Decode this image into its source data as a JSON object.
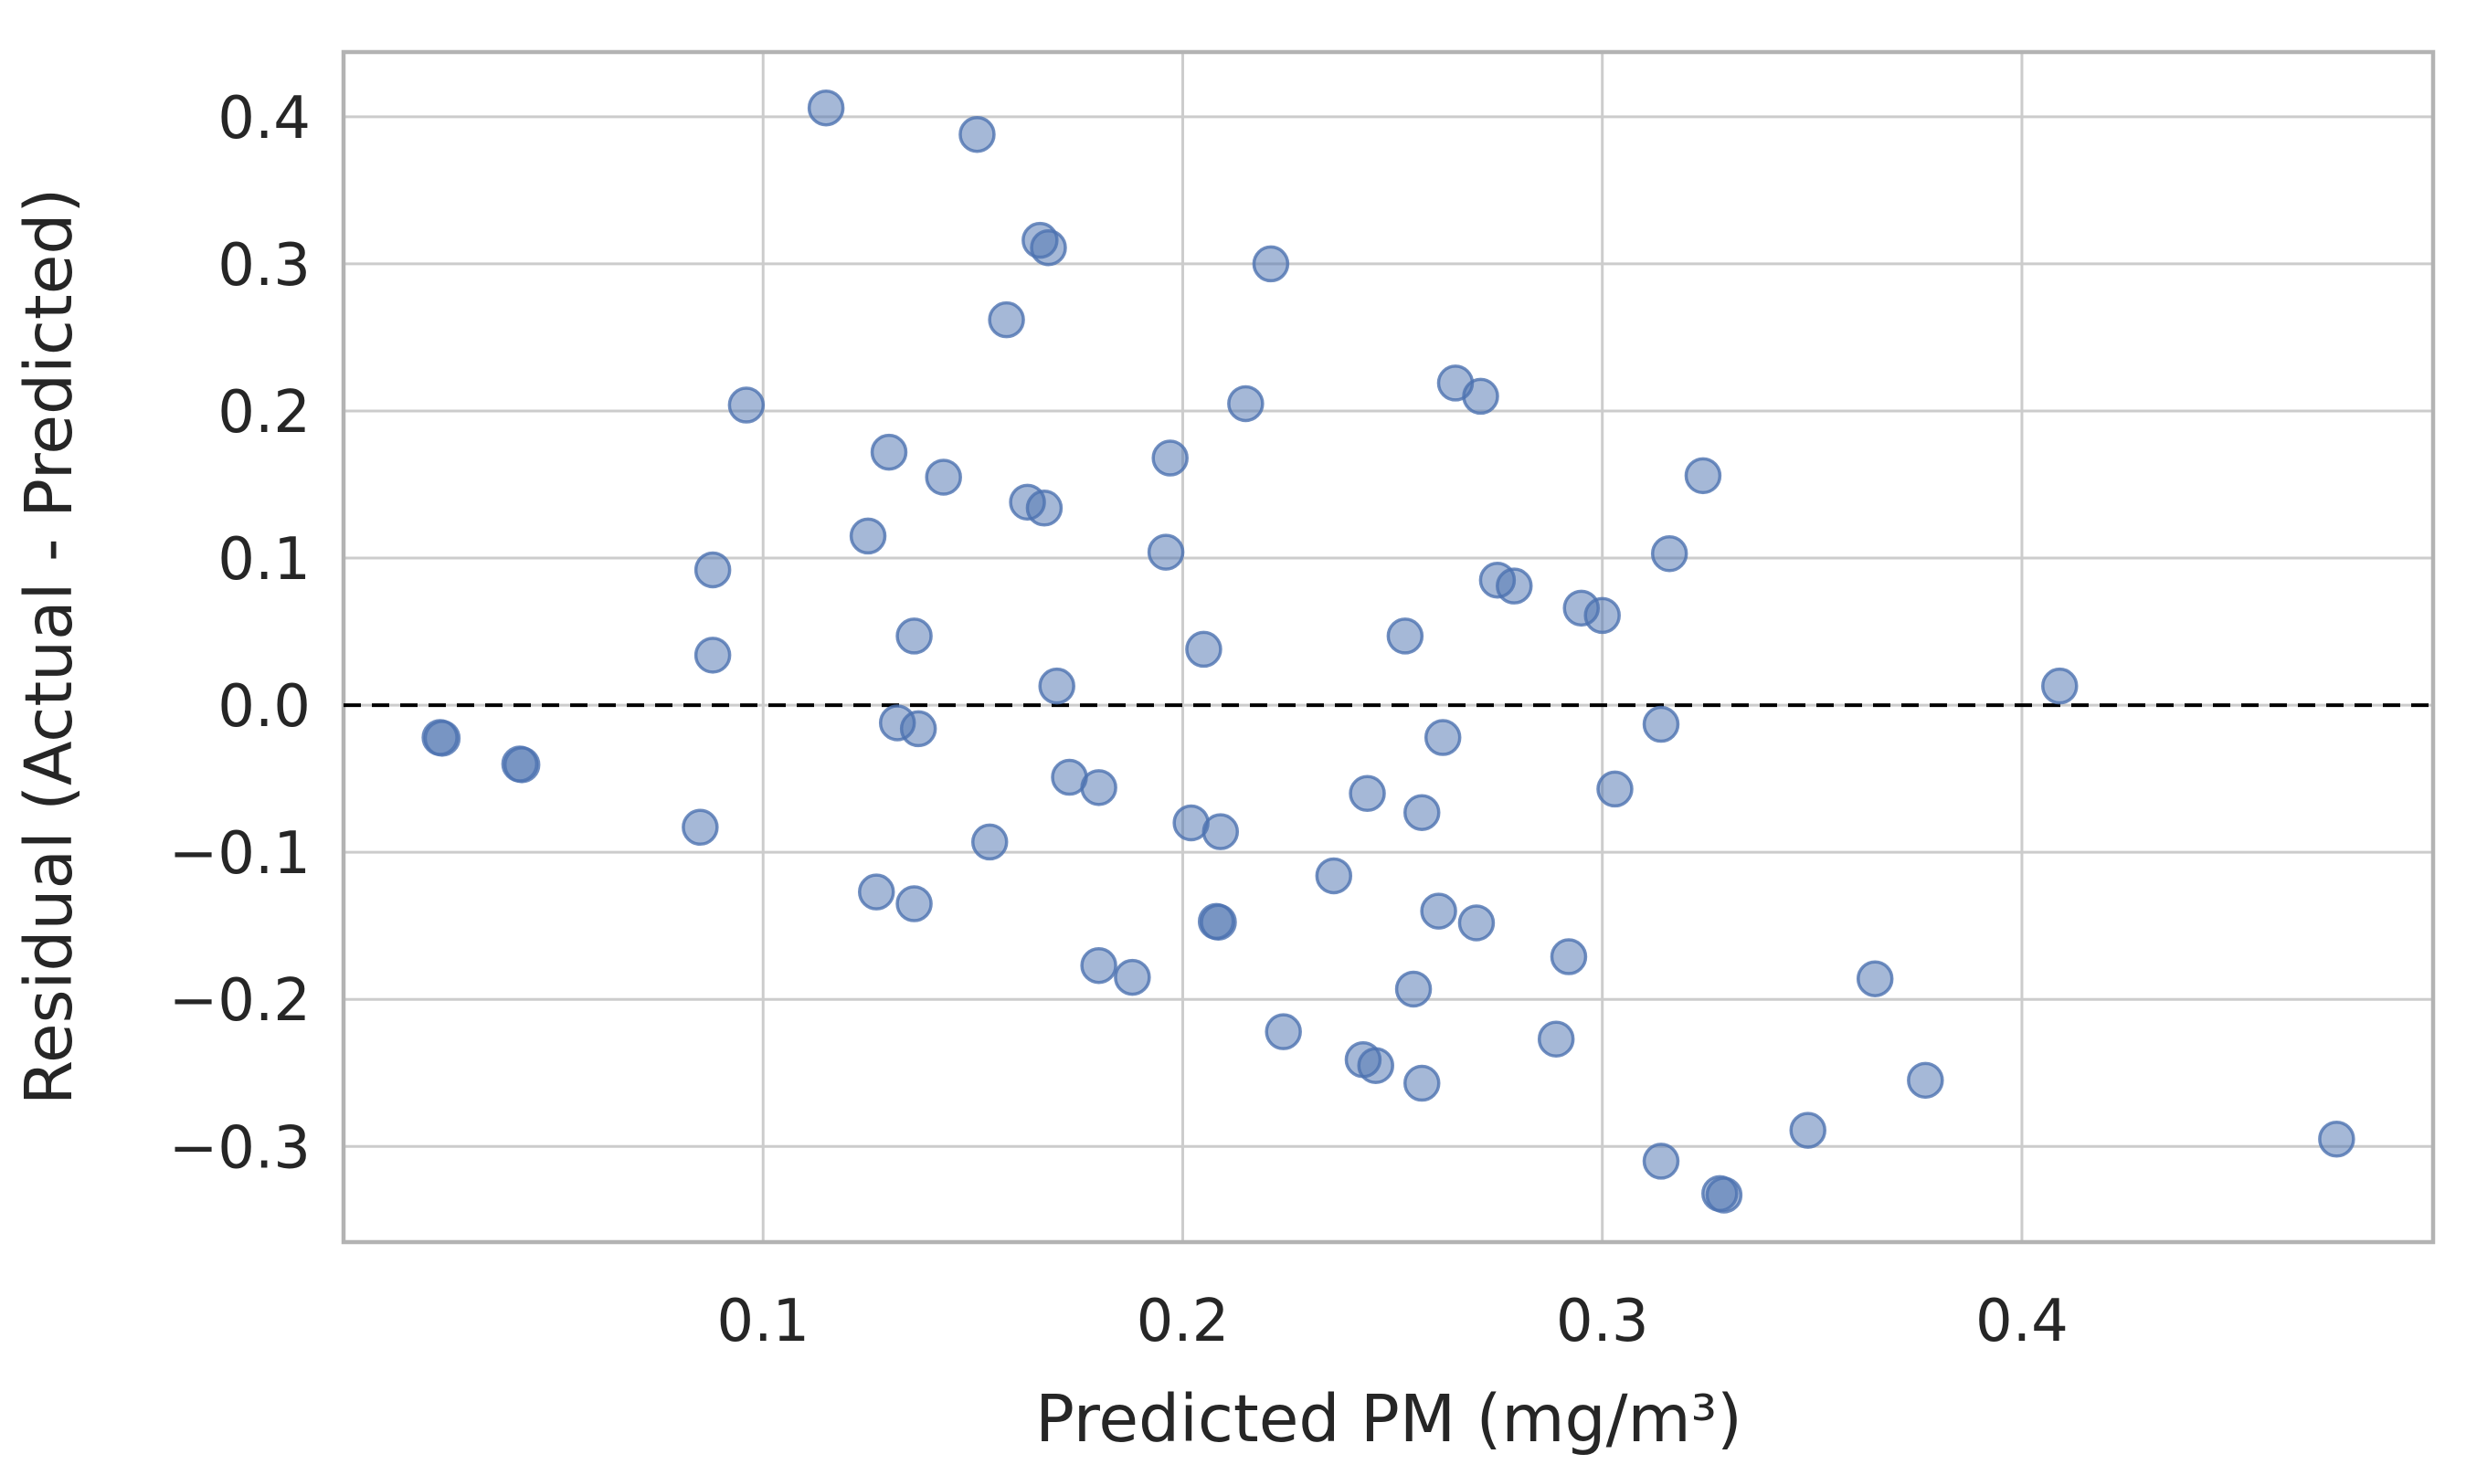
{
  "chart_data": {
    "type": "scatter",
    "title": "",
    "xlabel": "Predicted PM (mg/m³)",
    "ylabel": "Residual (Actual - Predicted)",
    "xlim": [
      0.0,
      0.498
    ],
    "ylim": [
      -0.365,
      0.444
    ],
    "x_ticks": [
      0.1,
      0.2,
      0.3,
      0.4
    ],
    "y_ticks": [
      0.4,
      0.3,
      0.2,
      0.1,
      0.0,
      -0.1,
      -0.2,
      -0.3
    ],
    "grid": true,
    "legend": false,
    "reference_line_y": 0.0,
    "reference_line_style": "dashed",
    "points": [
      [
        0.023,
        -0.022
      ],
      [
        0.0235,
        -0.0225
      ],
      [
        0.042,
        -0.04
      ],
      [
        0.0425,
        -0.0405
      ],
      [
        0.085,
        -0.083
      ],
      [
        0.088,
        0.092
      ],
      [
        0.088,
        0.034
      ],
      [
        0.096,
        0.204
      ],
      [
        0.115,
        0.406
      ],
      [
        0.125,
        0.115
      ],
      [
        0.127,
        -0.127
      ],
      [
        0.13,
        0.172
      ],
      [
        0.132,
        -0.012
      ],
      [
        0.136,
        -0.135
      ],
      [
        0.136,
        0.047
      ],
      [
        0.137,
        -0.016
      ],
      [
        0.143,
        0.155
      ],
      [
        0.151,
        0.388
      ],
      [
        0.154,
        -0.093
      ],
      [
        0.158,
        0.262
      ],
      [
        0.163,
        0.138
      ],
      [
        0.166,
        0.316
      ],
      [
        0.167,
        0.134
      ],
      [
        0.168,
        0.311
      ],
      [
        0.17,
        0.013
      ],
      [
        0.173,
        -0.049
      ],
      [
        0.18,
        -0.056
      ],
      [
        0.18,
        -0.177
      ],
      [
        0.188,
        -0.185
      ],
      [
        0.196,
        0.104
      ],
      [
        0.197,
        0.168
      ],
      [
        0.202,
        -0.08
      ],
      [
        0.205,
        0.038
      ],
      [
        0.208,
        -0.147
      ],
      [
        0.2085,
        -0.1475
      ],
      [
        0.209,
        -0.086
      ],
      [
        0.215,
        0.205
      ],
      [
        0.221,
        0.3
      ],
      [
        0.224,
        -0.222
      ],
      [
        0.236,
        -0.116
      ],
      [
        0.243,
        -0.241
      ],
      [
        0.244,
        -0.06
      ],
      [
        0.246,
        -0.245
      ],
      [
        0.253,
        0.047
      ],
      [
        0.255,
        -0.193
      ],
      [
        0.257,
        -0.073
      ],
      [
        0.257,
        -0.257
      ],
      [
        0.261,
        -0.14
      ],
      [
        0.262,
        -0.022
      ],
      [
        0.265,
        0.219
      ],
      [
        0.27,
        -0.148
      ],
      [
        0.271,
        0.21
      ],
      [
        0.275,
        0.085
      ],
      [
        0.279,
        0.081
      ],
      [
        0.289,
        -0.227
      ],
      [
        0.292,
        -0.171
      ],
      [
        0.295,
        0.066
      ],
      [
        0.3,
        0.061
      ],
      [
        0.303,
        -0.057
      ],
      [
        0.314,
        -0.013
      ],
      [
        0.314,
        -0.31
      ],
      [
        0.316,
        0.103
      ],
      [
        0.324,
        0.156
      ],
      [
        0.328,
        -0.332
      ],
      [
        0.329,
        -0.333
      ],
      [
        0.349,
        -0.289
      ],
      [
        0.365,
        -0.186
      ],
      [
        0.377,
        -0.255
      ],
      [
        0.409,
        0.013
      ],
      [
        0.475,
        -0.295
      ]
    ],
    "marker": {
      "fill": "#4C72B0",
      "fill_opacity": 0.5,
      "stroke": "#4C72B0",
      "stroke_opacity": 0.8,
      "radius_px": 18.5,
      "stroke_width_px": 3.5
    },
    "colors": {
      "background": "#ffffff",
      "grid": "#cccccc",
      "spine": "#b3b3b3",
      "text": "#262626",
      "reference_line": "#000000"
    }
  }
}
